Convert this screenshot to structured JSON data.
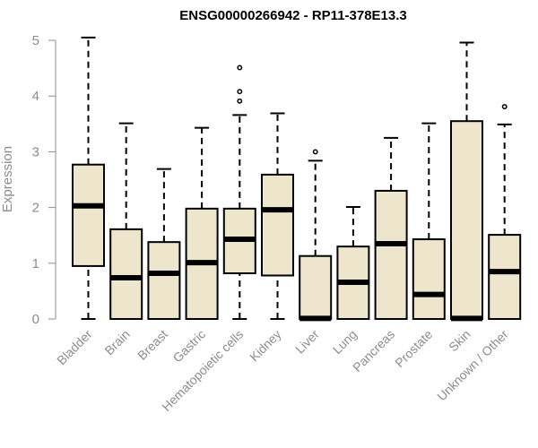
{
  "chart_data": {
    "type": "boxplot",
    "title": "ENSG00000266942 - RP11-378E13.3",
    "ylabel": "Expression",
    "ylim": [
      0,
      5
    ],
    "yticks": [
      "0",
      "1",
      "2",
      "3",
      "4",
      "5"
    ],
    "grid": false,
    "box_fill": "#ede6cc",
    "categories": [
      "Bladder",
      "Brain",
      "Breast",
      "Gastric",
      "Hematopoietic cells",
      "Kidney",
      "Liver",
      "Lung",
      "Pancreas",
      "Prostate",
      "Skin",
      "Unknown / Other"
    ],
    "boxes": [
      {
        "category": "Bladder",
        "whisker_low": 0,
        "q1": 0.95,
        "median": 2.03,
        "q3": 2.77,
        "whisker_high": 5.05,
        "outliers": []
      },
      {
        "category": "Brain",
        "whisker_low": 0,
        "q1": 0,
        "median": 0.74,
        "q3": 1.61,
        "whisker_high": 3.51,
        "outliers": []
      },
      {
        "category": "Breast",
        "whisker_low": 0,
        "q1": 0,
        "median": 0.82,
        "q3": 1.38,
        "whisker_high": 2.69,
        "outliers": []
      },
      {
        "category": "Gastric",
        "whisker_low": 0,
        "q1": 0,
        "median": 1.01,
        "q3": 1.98,
        "whisker_high": 3.43,
        "outliers": []
      },
      {
        "category": "Hematopoietic cells",
        "whisker_low": 0,
        "q1": 0.82,
        "median": 1.43,
        "q3": 1.98,
        "whisker_high": 3.66,
        "outliers": [
          3.91,
          4.08,
          4.51
        ]
      },
      {
        "category": "Kidney",
        "whisker_low": 0,
        "q1": 0.78,
        "median": 1.96,
        "q3": 2.59,
        "whisker_high": 3.69,
        "outliers": []
      },
      {
        "category": "Liver",
        "whisker_low": 0,
        "q1": 0,
        "median": 0.01,
        "q3": 1.13,
        "whisker_high": 2.84,
        "outliers": [
          3.0
        ]
      },
      {
        "category": "Lung",
        "whisker_low": 0,
        "q1": 0,
        "median": 0.66,
        "q3": 1.3,
        "whisker_high": 2.01,
        "outliers": []
      },
      {
        "category": "Pancreas",
        "whisker_low": 0,
        "q1": 0,
        "median": 1.35,
        "q3": 2.3,
        "whisker_high": 3.25,
        "outliers": []
      },
      {
        "category": "Prostate",
        "whisker_low": 0,
        "q1": 0,
        "median": 0.44,
        "q3": 1.43,
        "whisker_high": 3.51,
        "outliers": []
      },
      {
        "category": "Skin",
        "whisker_low": 0,
        "q1": 0,
        "median": 0.01,
        "q3": 3.55,
        "whisker_high": 4.96,
        "outliers": []
      },
      {
        "category": "Unknown / Other",
        "whisker_low": 0,
        "q1": 0,
        "median": 0.85,
        "q3": 1.51,
        "whisker_high": 3.49,
        "outliers": [
          3.81
        ]
      }
    ]
  }
}
